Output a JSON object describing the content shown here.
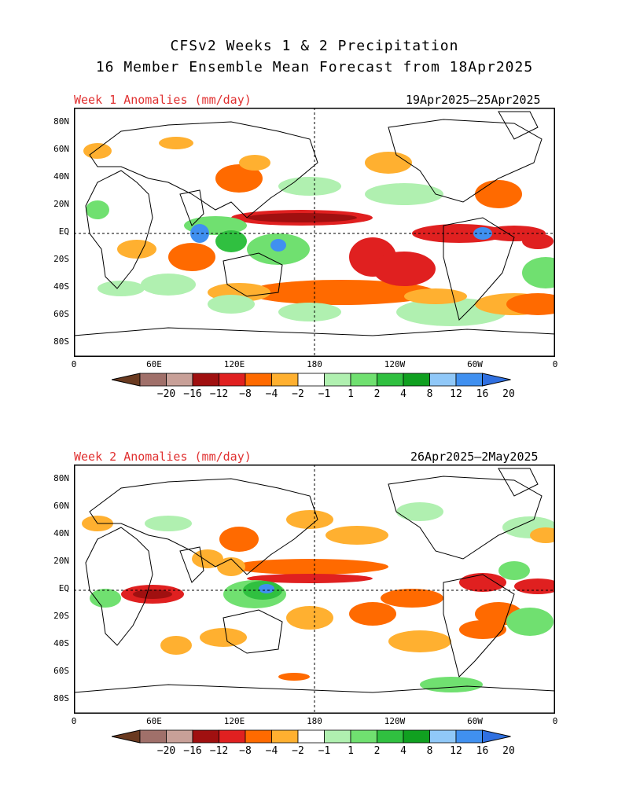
{
  "title_line1": "CFSv2 Weeks 1 & 2 Precipitation",
  "title_line2": "16 Member Ensemble Mean Forecast from 18Apr2025",
  "panels": [
    {
      "label": "Week 1 Anomalies (mm/day)",
      "dates": "19Apr2025–25Apr2025"
    },
    {
      "label": "Week 2 Anomalies (mm/day)",
      "dates": "26Apr2025–2May2025"
    }
  ],
  "lat_ticks": [
    "80N",
    "60N",
    "40N",
    "20N",
    "EQ",
    "20S",
    "40S",
    "60S",
    "80S"
  ],
  "lon_ticks": [
    "0",
    "60E",
    "120E",
    "180",
    "120W",
    "60W",
    "0"
  ],
  "colorbar": {
    "labels": [
      "−20",
      "−16",
      "−12",
      "−8",
      "−4",
      "−2",
      "−1",
      "1",
      "2",
      "4",
      "8",
      "12",
      "16",
      "20"
    ],
    "colors": [
      "#a0706a",
      "#c8a098",
      "#a01010",
      "#e02020",
      "#ff6a00",
      "#ffb030",
      "#ffffff",
      "#b0f0b0",
      "#70e070",
      "#30c040",
      "#10a020",
      "#90c8f8",
      "#4090f0"
    ],
    "low_arrow_color": "#6a3a20",
    "high_arrow_color": "#3070e0"
  }
}
